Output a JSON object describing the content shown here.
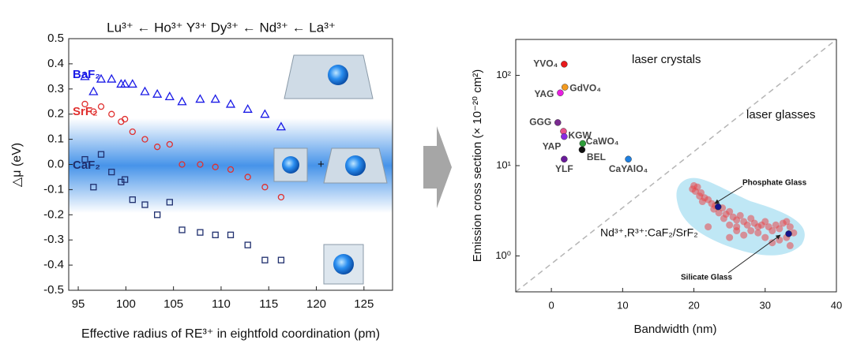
{
  "chart_data": [
    {
      "type": "scatter",
      "annotation": "Lu³⁺ ← Ho³⁺ Y³⁺ Dy³⁺ ← Nd³⁺ ← La³⁺",
      "x_label": "Effective radius of RE³⁺ in eightfold coordination (pm)",
      "y_label": "△μ (eV)",
      "xlim": [
        94,
        128
      ],
      "xticks": [
        95,
        100,
        105,
        110,
        115,
        120,
        125
      ],
      "ylim": [
        -0.5,
        0.5
      ],
      "yticks": [
        0.5,
        0.4,
        0.3,
        0.2,
        0.1,
        {
          "value": 0,
          "label": "0.0"
        },
        -0.1,
        -0.2,
        -0.3,
        -0.4,
        -0.5
      ],
      "series": [
        {
          "name": "BaF₂",
          "color": "#1a1ae6",
          "marker": "triangle",
          "x": [
            95.7,
            96.6,
            97.4,
            98.5,
            99.5,
            99.9,
            100.7,
            102.0,
            103.3,
            104.6,
            105.9,
            107.8,
            109.4,
            111.0,
            112.8,
            114.6,
            116.3
          ],
          "values": [
            0.35,
            0.29,
            0.34,
            0.34,
            0.32,
            0.32,
            0.32,
            0.29,
            0.28,
            0.27,
            0.25,
            0.26,
            0.26,
            0.24,
            0.22,
            0.2,
            0.15
          ]
        },
        {
          "name": "SrF₂",
          "color": "#e0302f",
          "marker": "circle",
          "x": [
            95.7,
            96.6,
            97.4,
            98.5,
            99.5,
            99.9,
            100.7,
            102.0,
            103.3,
            104.6,
            105.9,
            107.8,
            109.4,
            111.0,
            112.8,
            114.6,
            116.3
          ],
          "values": [
            0.24,
            0.21,
            0.23,
            0.2,
            0.17,
            0.18,
            0.13,
            0.1,
            0.07,
            0.08,
            0.0,
            0.0,
            -0.01,
            -0.02,
            -0.05,
            -0.09,
            -0.13
          ]
        },
        {
          "name": "CaF₂",
          "color": "#1f2f6e",
          "marker": "square",
          "x": [
            95.7,
            96.6,
            97.4,
            98.5,
            99.5,
            99.9,
            100.7,
            102.0,
            103.3,
            104.6,
            105.9,
            107.8,
            109.4,
            111.0,
            112.8,
            114.6,
            116.3
          ],
          "values": [
            0.02,
            -0.09,
            0.04,
            -0.03,
            -0.07,
            -0.06,
            -0.14,
            -0.16,
            -0.2,
            -0.15,
            -0.26,
            -0.27,
            -0.28,
            -0.28,
            -0.32,
            -0.38,
            -0.38
          ]
        }
      ]
    },
    {
      "type": "scatter",
      "log_y": true,
      "x_label": "Bandwidth (nm)",
      "y_label": "Emission cross section (× 10⁻²⁰ cm²)",
      "annotations": [
        "laser crystals",
        "laser glasses"
      ],
      "xlim": [
        -5,
        40
      ],
      "xticks": [
        0,
        10,
        20,
        30,
        40
      ],
      "ylim": [
        0.4,
        250
      ],
      "yticks": [
        {
          "value": 1,
          "label": "10⁰"
        },
        {
          "value": 10,
          "label": "10¹"
        },
        {
          "value": 100,
          "label": "10²"
        }
      ],
      "series": [
        {
          "marker": "ball",
          "labels": [
            "YVO₄",
            "GdVO₄",
            "YAG",
            "GGG",
            "KGW",
            "YAP",
            "YLF",
            "CaWO₄",
            "BEL",
            "CaYAlO₄"
          ],
          "colors": [
            "#e8191c",
            "#f39a1e",
            "#e81ee0",
            "#7a2b91",
            "#e8508a",
            "#8a2be2",
            "#6a1b9a",
            "#2e9d3a",
            "#111111",
            "#1e7fe0"
          ],
          "x": [
            1.8,
            1.9,
            1.25,
            0.9,
            1.7,
            1.8,
            1.8,
            4.4,
            4.3,
            10.8
          ],
          "values": [
            133,
            74,
            64,
            30,
            24,
            21,
            11.8,
            17.6,
            15,
            11.8
          ]
        },
        {
          "name": "Nd³⁺,R³⁺:CaF₂/SrF₂",
          "color": "#e8474b",
          "marker": "cloud",
          "x": [
            20,
            20.5,
            19.8,
            20.2,
            21,
            20.8,
            21.5,
            22,
            21.2,
            22.5,
            23,
            22.8,
            24,
            23.5,
            24.5,
            25,
            24.2,
            25.5,
            26,
            26.5,
            27,
            25,
            26,
            27.5,
            28,
            28.5,
            29,
            29.5,
            30,
            30.5,
            31,
            31.5,
            32,
            32.5,
            33,
            33.5,
            33,
            32,
            30,
            29,
            28,
            27,
            26,
            33.5,
            31,
            22,
            25,
            34
          ],
          "values": [
            6,
            5.8,
            5.5,
            5.2,
            5,
            4.6,
            4.4,
            4.2,
            4,
            3.8,
            3.6,
            3.3,
            3.4,
            3,
            2.9,
            3.1,
            2.6,
            2.7,
            2.5,
            2.8,
            2.4,
            2.2,
            2.1,
            2.2,
            2.6,
            2.3,
            2.1,
            2.2,
            2.4,
            2.1,
            1.9,
            2.2,
            2,
            2.3,
            2.4,
            2.1,
            1.6,
            1.5,
            1.6,
            1.8,
            1.9,
            1.7,
            1.9,
            1.3,
            1.4,
            2.1,
            1.6,
            1.8
          ]
        },
        {
          "name": "Phosphate Glass",
          "color": "#14148c",
          "marker": "ball",
          "x": [
            23.4
          ],
          "values": [
            3.5
          ]
        },
        {
          "name": "Silicate Glass",
          "color": "#14148c",
          "marker": "ball",
          "x": [
            33.3
          ],
          "values": [
            1.76
          ]
        }
      ]
    }
  ]
}
